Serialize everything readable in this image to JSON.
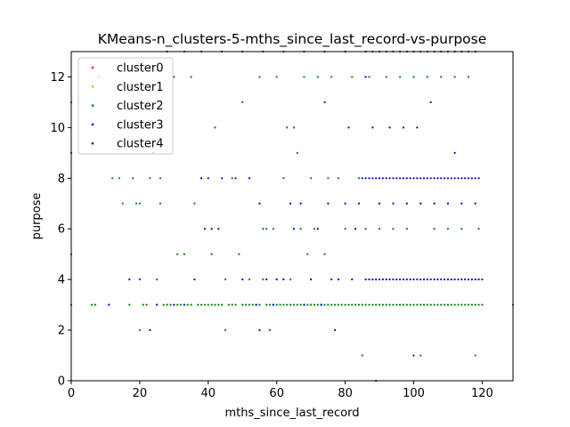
{
  "chart_data": {
    "type": "scatter",
    "title": "KMeans-n_clusters-5-mths_since_last_record-vs-purpose",
    "xlabel": "mths_since_last_record",
    "ylabel": "purpose",
    "xlim": [
      0,
      129
    ],
    "ylim": [
      0,
      13
    ],
    "xticks": [
      0,
      20,
      40,
      60,
      80,
      100,
      120
    ],
    "yticks": [
      0,
      2,
      4,
      6,
      8,
      10,
      12
    ],
    "grid": false,
    "legend_position": "top-left",
    "series": [
      {
        "name": "cluster0",
        "color": "#ff0000",
        "points": []
      },
      {
        "name": "cluster1",
        "color": "#ffa500",
        "points": []
      },
      {
        "name": "cluster2",
        "color": "#008000",
        "points": [
          [
            0,
            3
          ],
          [
            0,
            5
          ],
          [
            0,
            9
          ],
          [
            0,
            11
          ],
          [
            6,
            3
          ],
          [
            7,
            3
          ],
          [
            8,
            12
          ],
          [
            12,
            8
          ],
          [
            14,
            8
          ],
          [
            15,
            7
          ],
          [
            17,
            3
          ],
          [
            18,
            8
          ],
          [
            19,
            7
          ],
          [
            20,
            2
          ],
          [
            20,
            7
          ],
          [
            21,
            3
          ],
          [
            22,
            3
          ],
          [
            23,
            8
          ],
          [
            25,
            4
          ],
          [
            26,
            7
          ],
          [
            26,
            8
          ],
          [
            27,
            3
          ],
          [
            28,
            3
          ],
          [
            29,
            3
          ],
          [
            30,
            12
          ],
          [
            31,
            3
          ],
          [
            31,
            5
          ],
          [
            32,
            3
          ],
          [
            33,
            5
          ],
          [
            34,
            3
          ],
          [
            35,
            3
          ],
          [
            35,
            12
          ],
          [
            36,
            7
          ],
          [
            37,
            3
          ],
          [
            38,
            3
          ],
          [
            38,
            8
          ],
          [
            39,
            3
          ],
          [
            40,
            3
          ],
          [
            41,
            3
          ],
          [
            41,
            5
          ],
          [
            42,
            3
          ],
          [
            42,
            10
          ],
          [
            43,
            3
          ],
          [
            44,
            3
          ],
          [
            45,
            2
          ],
          [
            45,
            4
          ],
          [
            46,
            3
          ],
          [
            47,
            3
          ],
          [
            47,
            8
          ],
          [
            48,
            3
          ],
          [
            49,
            5
          ],
          [
            50,
            3
          ],
          [
            50,
            11
          ],
          [
            51,
            3
          ],
          [
            52,
            3
          ],
          [
            52,
            4
          ],
          [
            53,
            3
          ],
          [
            54,
            3
          ],
          [
            55,
            3
          ],
          [
            55,
            12
          ],
          [
            56,
            4
          ],
          [
            56,
            6
          ],
          [
            57,
            3
          ],
          [
            57,
            6
          ],
          [
            58,
            2
          ],
          [
            58,
            3
          ],
          [
            59,
            3
          ],
          [
            59,
            6
          ],
          [
            60,
            3
          ],
          [
            60,
            12
          ],
          [
            61,
            3
          ],
          [
            62,
            3
          ],
          [
            62,
            8
          ],
          [
            63,
            3
          ],
          [
            63,
            10
          ],
          [
            64,
            3
          ],
          [
            64,
            4
          ],
          [
            65,
            3
          ],
          [
            65,
            10
          ],
          [
            66,
            3
          ],
          [
            66,
            9
          ],
          [
            67,
            3
          ],
          [
            67,
            6
          ],
          [
            68,
            3
          ],
          [
            68,
            12
          ],
          [
            69,
            3
          ],
          [
            69,
            5
          ],
          [
            70,
            3
          ],
          [
            70,
            8
          ],
          [
            71,
            3
          ],
          [
            71,
            6
          ],
          [
            72,
            3
          ],
          [
            72,
            12
          ],
          [
            73,
            3
          ],
          [
            74,
            3
          ],
          [
            74,
            5
          ],
          [
            75,
            3
          ],
          [
            75,
            8
          ],
          [
            76,
            3
          ],
          [
            76,
            12
          ],
          [
            77,
            3
          ],
          [
            78,
            3
          ],
          [
            78,
            8
          ],
          [
            79,
            3
          ],
          [
            80,
            3
          ],
          [
            80,
            6
          ],
          [
            81,
            3
          ],
          [
            82,
            3
          ],
          [
            82,
            12
          ],
          [
            83,
            3
          ],
          [
            84,
            3
          ],
          [
            84,
            8
          ],
          [
            85,
            1
          ],
          [
            85,
            3
          ],
          [
            86,
            3
          ],
          [
            86,
            6
          ],
          [
            87,
            3
          ],
          [
            87,
            12
          ],
          [
            88,
            3
          ],
          [
            89,
            3
          ],
          [
            90,
            3
          ],
          [
            90,
            6
          ],
          [
            91,
            3
          ],
          [
            92,
            3
          ],
          [
            92,
            12
          ],
          [
            93,
            3
          ],
          [
            94,
            3
          ],
          [
            94,
            6
          ],
          [
            95,
            3
          ],
          [
            96,
            3
          ],
          [
            96,
            12
          ],
          [
            97,
            3
          ],
          [
            98,
            3
          ],
          [
            98,
            6
          ],
          [
            99,
            3
          ],
          [
            100,
            3
          ],
          [
            100,
            12
          ],
          [
            101,
            3
          ],
          [
            102,
            1
          ],
          [
            102,
            3
          ],
          [
            103,
            3
          ],
          [
            104,
            3
          ],
          [
            104,
            12
          ],
          [
            105,
            3
          ],
          [
            106,
            3
          ],
          [
            106,
            6
          ],
          [
            107,
            3
          ],
          [
            108,
            3
          ],
          [
            108,
            12
          ],
          [
            109,
            3
          ],
          [
            110,
            3
          ],
          [
            110,
            6
          ],
          [
            111,
            3
          ],
          [
            112,
            3
          ],
          [
            112,
            12
          ],
          [
            113,
            3
          ],
          [
            114,
            3
          ],
          [
            114,
            6
          ],
          [
            115,
            3
          ],
          [
            116,
            3
          ],
          [
            116,
            12
          ],
          [
            117,
            3
          ],
          [
            118,
            1
          ],
          [
            118,
            3
          ],
          [
            119,
            3
          ],
          [
            119,
            6
          ],
          [
            120,
            3
          ],
          [
            129,
            3
          ]
        ]
      },
      {
        "name": "cluster3",
        "color": "#0000cd",
        "points": [
          [
            11,
            3
          ],
          [
            17,
            4
          ],
          [
            23,
            2
          ],
          [
            25,
            3
          ],
          [
            30,
            3
          ],
          [
            33,
            3
          ],
          [
            36,
            4
          ],
          [
            38,
            8
          ],
          [
            39,
            6
          ],
          [
            40,
            8
          ],
          [
            41,
            6
          ],
          [
            43,
            6
          ],
          [
            44,
            8
          ],
          [
            48,
            8
          ],
          [
            50,
            4
          ],
          [
            52,
            8
          ],
          [
            54,
            3
          ],
          [
            55,
            7
          ],
          [
            55,
            2
          ],
          [
            57,
            4
          ],
          [
            59,
            3
          ],
          [
            60,
            4
          ],
          [
            62,
            4
          ],
          [
            64,
            7
          ],
          [
            65,
            6
          ],
          [
            67,
            7
          ],
          [
            68,
            3
          ],
          [
            70,
            4
          ],
          [
            72,
            6
          ],
          [
            73,
            3
          ],
          [
            74,
            11
          ],
          [
            75,
            7
          ],
          [
            76,
            4
          ],
          [
            77,
            2
          ],
          [
            78,
            4
          ],
          [
            80,
            7
          ],
          [
            81,
            10
          ],
          [
            82,
            4
          ],
          [
            83,
            6
          ],
          [
            84,
            7
          ],
          [
            85,
            8
          ],
          [
            86,
            4
          ],
          [
            86,
            8
          ],
          [
            86,
            12
          ],
          [
            87,
            4
          ],
          [
            87,
            8
          ],
          [
            88,
            4
          ],
          [
            88,
            8
          ],
          [
            88,
            10
          ],
          [
            89,
            0
          ],
          [
            89,
            4
          ],
          [
            89,
            8
          ],
          [
            90,
            4
          ],
          [
            90,
            7
          ],
          [
            90,
            8
          ],
          [
            91,
            4
          ],
          [
            91,
            8
          ],
          [
            92,
            4
          ],
          [
            92,
            8
          ],
          [
            93,
            4
          ],
          [
            93,
            8
          ],
          [
            93,
            10
          ],
          [
            94,
            4
          ],
          [
            94,
            7
          ],
          [
            94,
            8
          ],
          [
            95,
            4
          ],
          [
            95,
            8
          ],
          [
            96,
            4
          ],
          [
            96,
            8
          ],
          [
            97,
            4
          ],
          [
            97,
            8
          ],
          [
            97,
            10
          ],
          [
            98,
            4
          ],
          [
            98,
            7
          ],
          [
            98,
            8
          ],
          [
            99,
            4
          ],
          [
            99,
            8
          ],
          [
            100,
            1
          ],
          [
            100,
            4
          ],
          [
            100,
            8
          ],
          [
            101,
            4
          ],
          [
            101,
            8
          ],
          [
            101,
            10
          ],
          [
            102,
            4
          ],
          [
            102,
            7
          ],
          [
            102,
            8
          ],
          [
            103,
            4
          ],
          [
            103,
            8
          ],
          [
            104,
            4
          ],
          [
            104,
            8
          ],
          [
            105,
            4
          ],
          [
            105,
            8
          ],
          [
            105,
            11
          ],
          [
            106,
            4
          ],
          [
            106,
            7
          ],
          [
            106,
            8
          ],
          [
            107,
            4
          ],
          [
            107,
            8
          ],
          [
            108,
            4
          ],
          [
            108,
            8
          ],
          [
            109,
            4
          ],
          [
            109,
            8
          ],
          [
            110,
            4
          ],
          [
            110,
            7
          ],
          [
            110,
            8
          ],
          [
            111,
            4
          ],
          [
            111,
            8
          ],
          [
            112,
            4
          ],
          [
            112,
            8
          ],
          [
            112,
            9
          ],
          [
            113,
            4
          ],
          [
            113,
            8
          ],
          [
            114,
            4
          ],
          [
            114,
            7
          ],
          [
            114,
            8
          ],
          [
            115,
            4
          ],
          [
            115,
            8
          ],
          [
            116,
            4
          ],
          [
            116,
            8
          ],
          [
            117,
            4
          ],
          [
            117,
            8
          ],
          [
            118,
            4
          ],
          [
            118,
            7
          ],
          [
            118,
            8
          ],
          [
            119,
            4
          ],
          [
            119,
            8
          ],
          [
            120,
            4
          ]
        ]
      },
      {
        "name": "cluster4",
        "color": "#4b0082",
        "points": [
          [
            20,
            4
          ],
          [
            24,
            9
          ],
          [
            28,
            13
          ],
          [
            33,
            13
          ],
          [
            38,
            13
          ],
          [
            44,
            13
          ],
          [
            50,
            13
          ],
          [
            56,
            13
          ],
          [
            62,
            13
          ],
          [
            68,
            13
          ],
          [
            74,
            13
          ],
          [
            80,
            13
          ],
          [
            86,
            13
          ],
          [
            88,
            13
          ],
          [
            90,
            13
          ],
          [
            92,
            13
          ],
          [
            94,
            13
          ],
          [
            96,
            13
          ],
          [
            98,
            13
          ],
          [
            100,
            13
          ],
          [
            102,
            13
          ],
          [
            104,
            13
          ],
          [
            106,
            13
          ],
          [
            108,
            13
          ],
          [
            110,
            13
          ],
          [
            112,
            13
          ],
          [
            114,
            13
          ],
          [
            116,
            13
          ],
          [
            118,
            13
          ]
        ]
      }
    ]
  }
}
